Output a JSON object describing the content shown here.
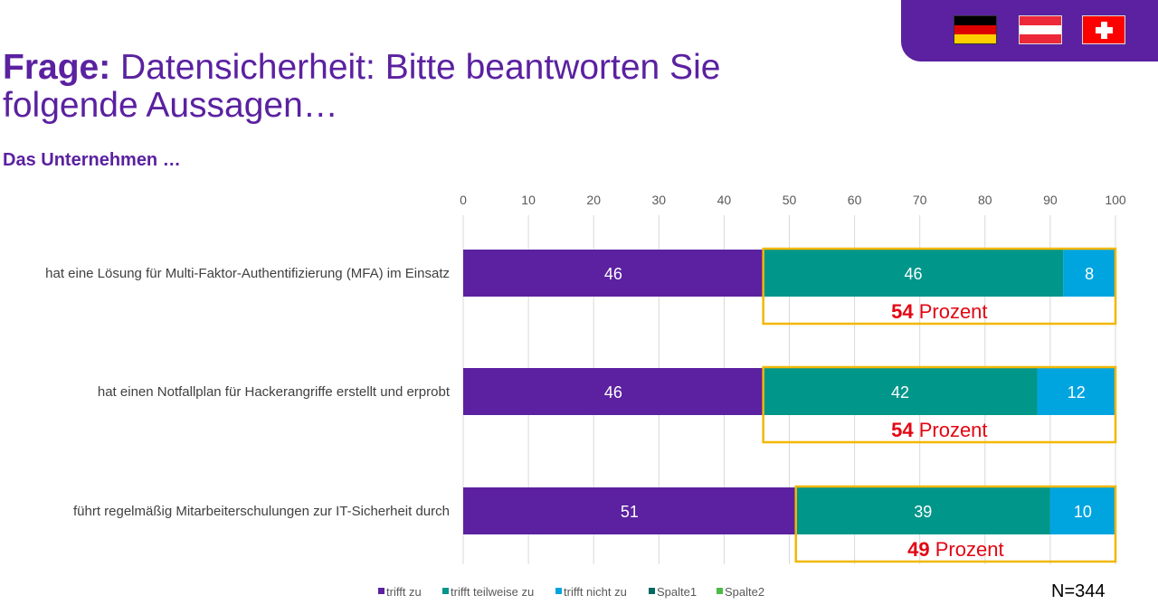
{
  "header": {
    "title_bold": "Frage:",
    "title_rest": " Datensicherheit: Bitte beantworten Sie folgende Aussagen…",
    "subtitle": "Das Unternehmen …",
    "flags": [
      "germany-flag",
      "austria-flag",
      "switzerland-flag"
    ]
  },
  "chart_data": {
    "type": "bar",
    "orientation": "horizontal",
    "stacked": true,
    "xlim": [
      0,
      100
    ],
    "xticks": [
      0,
      10,
      20,
      30,
      40,
      50,
      60,
      70,
      80,
      90,
      100
    ],
    "grid": true,
    "categories": [
      "hat eine Lösung für Multi-Faktor-Authentifizierung (MFA) im Einsatz",
      "hat einen Notfallplan für Hackerangriffe erstellt und erprobt",
      "führt regelmäßig Mitarbeiterschulungen zur IT-Sicherheit durch"
    ],
    "series": [
      {
        "name": "trifft zu",
        "values": [
          46,
          46,
          51
        ],
        "color": "#5b21a0"
      },
      {
        "name": "trifft teilweise zu",
        "values": [
          46,
          42,
          39
        ],
        "color": "#00968a"
      },
      {
        "name": "trifft nicht zu",
        "values": [
          8,
          12,
          10
        ],
        "color": "#00a5e0"
      }
    ],
    "legend": [
      {
        "name": "trifft zu",
        "color": "#5b21a0"
      },
      {
        "name": "trifft teilweise zu",
        "color": "#00968a"
      },
      {
        "name": "trifft nicht zu",
        "color": "#00a5e0"
      },
      {
        "name": "Spalte1",
        "color": "#006b63"
      },
      {
        "name": "Spalte2",
        "color": "#4cbb47"
      }
    ],
    "legend_position": "bottom",
    "annotations": [
      {
        "value": "54",
        "unit": " Prozent"
      },
      {
        "value": "54",
        "unit": " Prozent"
      },
      {
        "value": "49",
        "unit": " Prozent"
      }
    ],
    "highlight_color": "#f2b705",
    "annotation_color": "#e30613"
  },
  "footer": {
    "n_label": "N=344"
  }
}
